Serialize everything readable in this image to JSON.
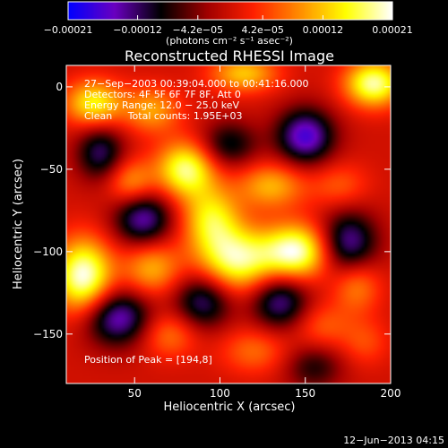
{
  "chart_data": {
    "type": "heatmap",
    "title": "Reconstructed RHESSI Image",
    "xlabel": "Heliocentric X (arcsec)",
    "ylabel": "Heliocentric Y (arcsec)",
    "xlim": [
      10,
      200
    ],
    "ylim": [
      -180,
      13
    ],
    "x_ticks": [
      50,
      100,
      150,
      200
    ],
    "y_ticks": [
      0,
      -50,
      -100,
      -150
    ],
    "x_ticks_text": [
      "50",
      "100",
      "150",
      "200"
    ],
    "y_ticks_text": [
      "0",
      "−50",
      "−100",
      "−150"
    ],
    "colorbar": {
      "range": [
        -0.00021,
        0.00021
      ],
      "ticks": [
        -0.00021,
        -0.00012,
        -4.2e-05,
        4.2e-05,
        0.00012,
        0.00021
      ],
      "tick_labels": [
        "−0.00021",
        "−0.00012",
        "−4.2e−05",
        "4.2e−05",
        "0.00012",
        "0.00021"
      ],
      "label": "(photons cm⁻² s⁻¹ asec⁻²)",
      "colors": [
        "#0000ff",
        "#6a00c0",
        "#000000",
        "#a00000",
        "#ff2000",
        "#ff8c00",
        "#ffff00",
        "#ffffff"
      ]
    },
    "annotations": [
      "27−Sep−2003 00:39:04.000 to 00:41:16.000",
      "Detectors: 4F 5F 6F 7F 8F, Att 0",
      "Energy Range: 12.0 − 25.0 keV",
      "Clean     Total counts: 1.95E+03"
    ],
    "peak_label": "Position of Peak = [194,8]",
    "peak": [
      194,
      8
    ],
    "footer_date": "12−Jun−2013 04:15",
    "blobs": [
      [
        190,
        2,
        0.00019,
        12,
        10
      ],
      [
        114,
        8,
        0.00012,
        14,
        8
      ],
      [
        26,
        -10,
        0.00015,
        12,
        10
      ],
      [
        60,
        -14,
        0.0001,
        12,
        10
      ],
      [
        80,
        -50,
        0.00018,
        12,
        12
      ],
      [
        130,
        -60,
        0.00011,
        14,
        10
      ],
      [
        170,
        -60,
        6e-05,
        12,
        10
      ],
      [
        48,
        -58,
        0.0001,
        10,
        10
      ],
      [
        95,
        -80,
        0.00014,
        12,
        14
      ],
      [
        110,
        -105,
        0.00018,
        16,
        14
      ],
      [
        145,
        -100,
        0.0002,
        14,
        12
      ],
      [
        20,
        -115,
        0.00021,
        12,
        16
      ],
      [
        60,
        -110,
        0.00011,
        12,
        12
      ],
      [
        180,
        -120,
        9e-05,
        10,
        12
      ],
      [
        70,
        -150,
        8e-05,
        12,
        10
      ],
      [
        120,
        -160,
        7e-05,
        14,
        10
      ],
      [
        160,
        -145,
        6e-05,
        12,
        10
      ],
      [
        185,
        -155,
        5e-05,
        10,
        10
      ],
      [
        40,
        -140,
        -0.00016,
        14,
        12
      ],
      [
        150,
        -30,
        -0.00017,
        12,
        12
      ],
      [
        105,
        -35,
        -0.0001,
        12,
        10
      ],
      [
        175,
        -95,
        -0.00015,
        12,
        14
      ],
      [
        55,
        -80,
        -0.00015,
        12,
        12
      ],
      [
        90,
        -130,
        -0.00013,
        12,
        12
      ],
      [
        135,
        -130,
        -0.00014,
        12,
        12
      ],
      [
        30,
        -40,
        -0.00012,
        10,
        12
      ],
      [
        155,
        -170,
        -8e-05,
        12,
        10
      ]
    ]
  }
}
